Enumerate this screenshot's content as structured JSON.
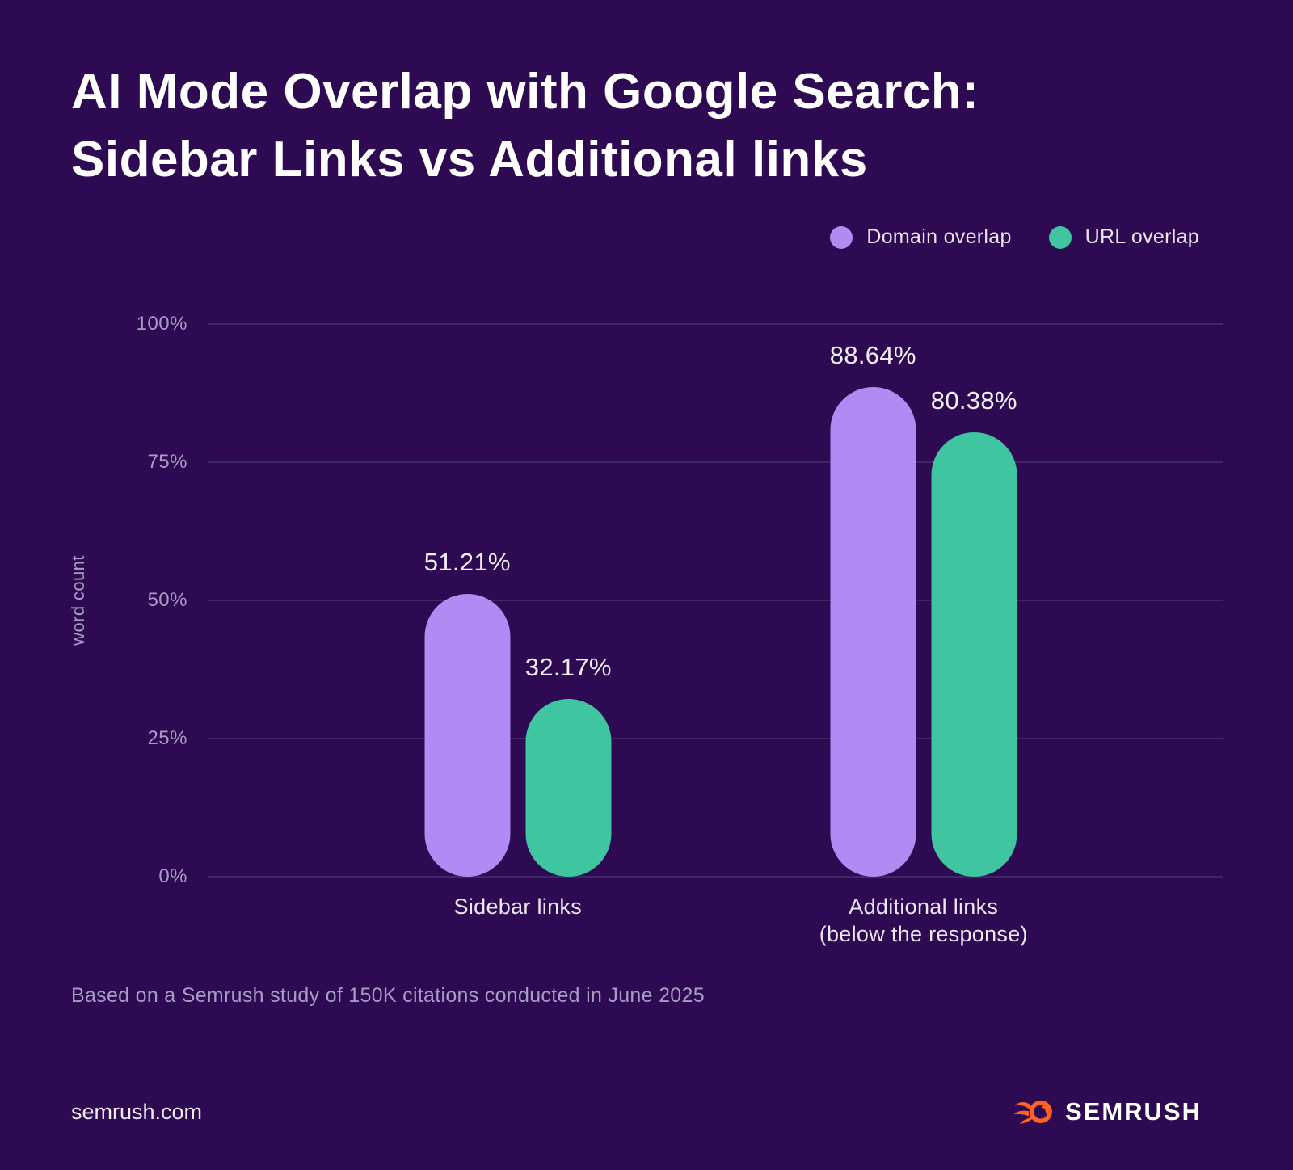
{
  "page": {
    "title": "AI Mode Overlap with Google Search:\nSidebar Links vs Additional links",
    "source_note": "Based on a Semrush study of 150K citations conducted in June 2025",
    "website": "semrush.com",
    "brand": "SEMRUSH"
  },
  "colors": {
    "background": "#2e0a52",
    "gridline": "#3d2766",
    "domain_overlap": "#b18af3",
    "url_overlap": "#3fc5a0",
    "muted_text": "#a89bc6",
    "label_text": "#f4f0fa",
    "brand_orange": "#ff6224"
  },
  "legend": {
    "items": [
      {
        "label": "Domain overlap",
        "color": "#b18af3"
      },
      {
        "label": "URL overlap",
        "color": "#3fc5a0"
      }
    ]
  },
  "chart_data": {
    "type": "bar",
    "title": "AI Mode Overlap with Google Search: Sidebar Links vs Additional links",
    "categories": [
      "Sidebar links",
      "Additional links\n(below the response)"
    ],
    "series": [
      {
        "name": "Domain overlap",
        "color": "#b18af3",
        "values": [
          51.21,
          88.64
        ],
        "labels": [
          "51.21%",
          "88.64%"
        ]
      },
      {
        "name": "URL overlap",
        "color": "#3fc5a0",
        "values": [
          32.17,
          80.38
        ],
        "labels": [
          "32.17%",
          "80.38%"
        ]
      }
    ],
    "xlabel": "",
    "ylabel": "word count",
    "ylim": [
      0,
      100
    ],
    "yticks": [
      0,
      25,
      50,
      75,
      100
    ],
    "ytick_labels": [
      "0%",
      "25%",
      "50%",
      "75%",
      "100%"
    ],
    "grid": true,
    "legend_position": "top-right"
  }
}
